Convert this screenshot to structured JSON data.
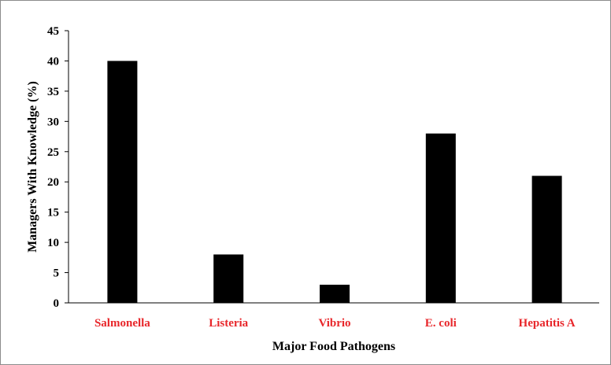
{
  "chart_data": {
    "type": "bar",
    "title": "",
    "xlabel": "Major Food Pathogens",
    "ylabel": "Managers With Knowledge (%)",
    "categories": [
      "Salmonella",
      "Listeria",
      "Vibrio",
      "E. coli",
      "Hepatitis A"
    ],
    "values": [
      40,
      8,
      3,
      28,
      21
    ],
    "ylim": [
      0,
      45
    ],
    "yticks": [
      0,
      5,
      10,
      15,
      20,
      25,
      30,
      35,
      40,
      45
    ],
    "grid": false,
    "legend": "none"
  },
  "colors": {
    "bar": "#000000",
    "category_label": "#e8262a",
    "axis": "#000000",
    "frame": "#8c8c8c"
  }
}
